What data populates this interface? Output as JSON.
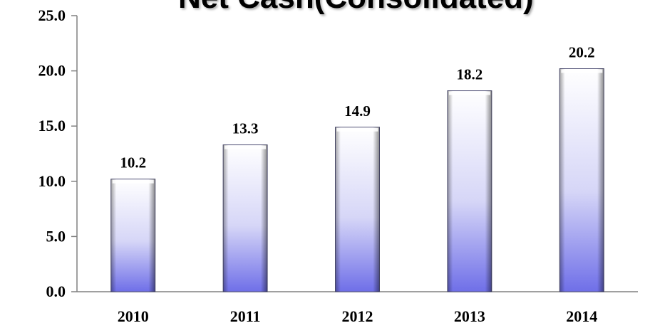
{
  "chart_data": {
    "type": "bar",
    "title": "Net Cash(Consolidated)",
    "categories": [
      "2010",
      "2011",
      "2012",
      "2013",
      "2014"
    ],
    "values": [
      10.2,
      13.3,
      14.9,
      18.2,
      20.2
    ],
    "data_labels": [
      "10.2",
      "13.3",
      "14.9",
      "18.2",
      "20.2"
    ],
    "y_ticks": [
      "0.0",
      "5.0",
      "10.0",
      "15.0",
      "20.0",
      "25.0"
    ],
    "ylim": [
      0,
      25
    ],
    "grid": false,
    "legend": "none",
    "bar_color_top": "#ffffff",
    "bar_color_bottom": "#6f6fe8"
  }
}
